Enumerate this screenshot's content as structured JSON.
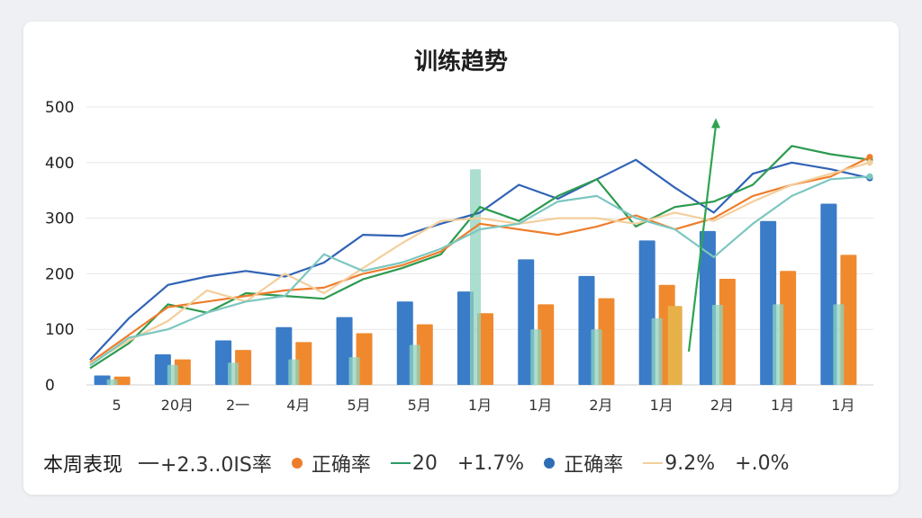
{
  "chart_data": {
    "type": "bar",
    "title": "训练趋势",
    "ylim": [
      0,
      500
    ],
    "yticks": [
      0,
      100,
      200,
      300,
      400,
      500
    ],
    "categories": [
      "5",
      "20月",
      "2一",
      "4月",
      "5月",
      "5月",
      "1月",
      "1月",
      "2月",
      "1月",
      "2月",
      "1月",
      "1月"
    ],
    "grid": true,
    "legend_position": "bottom",
    "bar_series": [
      {
        "color": "#3a7cc7",
        "values": [
          17,
          55,
          80,
          104,
          122,
          150,
          168,
          226,
          196,
          260,
          277,
          295,
          326
        ]
      },
      {
        "color": "#f0892e",
        "values": [
          15,
          46,
          63,
          77,
          93,
          109,
          129,
          145,
          156,
          180,
          191,
          205,
          234
        ]
      },
      {
        "color": "#8fd3bf",
        "values": [
          10,
          36,
          40,
          46,
          50,
          72,
          388,
          100,
          100,
          120,
          144,
          145,
          145
        ]
      },
      {
        "color": "#e7b14a",
        "values": [
          0,
          0,
          0,
          0,
          0,
          0,
          0,
          0,
          0,
          142,
          0,
          0,
          0
        ]
      }
    ],
    "line_series": [
      {
        "color": "#2f63b5",
        "values": [
          45,
          120,
          180,
          195,
          205,
          195,
          220,
          270,
          268,
          290,
          310,
          360,
          335,
          370,
          405,
          355,
          310,
          380,
          400,
          388,
          372
        ]
      },
      {
        "color": "#2d9a50",
        "values": [
          30,
          75,
          145,
          130,
          165,
          160,
          155,
          190,
          210,
          235,
          320,
          295,
          340,
          370,
          285,
          320,
          330,
          360,
          430,
          415,
          405
        ]
      },
      {
        "color": "#ee7d2b",
        "values": [
          40,
          90,
          140,
          150,
          160,
          170,
          175,
          200,
          215,
          240,
          290,
          280,
          270,
          285,
          305,
          280,
          300,
          340,
          360,
          375,
          410
        ]
      },
      {
        "color": "#f3cf9c",
        "values": [
          38,
          80,
          115,
          170,
          150,
          200,
          165,
          210,
          255,
          295,
          300,
          290,
          300,
          300,
          290,
          310,
          295,
          330,
          360,
          380,
          400
        ]
      },
      {
        "color": "#7cc7c0",
        "values": [
          35,
          85,
          100,
          130,
          150,
          160,
          235,
          205,
          220,
          245,
          280,
          290,
          330,
          340,
          300,
          280,
          230,
          290,
          340,
          370,
          375
        ]
      }
    ],
    "spike": {
      "color": "#2ea44f",
      "from": 60,
      "to": 480
    },
    "legend": {
      "label": "本周表现",
      "items": [
        {
          "marker": "line",
          "color": "#444444",
          "text": "+2.3..0IS率"
        },
        {
          "marker": "dot",
          "color": "#ee7d2b",
          "text": "正确率"
        },
        {
          "marker": "line",
          "color": "#2d9a6a",
          "text": "20"
        },
        {
          "marker": "none",
          "color": "#333333",
          "text": "+1.7%"
        },
        {
          "marker": "dot",
          "color": "#2f6cb5",
          "text": "正确率"
        },
        {
          "marker": "line",
          "color": "#f3cf9c",
          "text": "9.2%"
        },
        {
          "marker": "none",
          "color": "#333333",
          "text": "+.0%"
        }
      ]
    }
  }
}
